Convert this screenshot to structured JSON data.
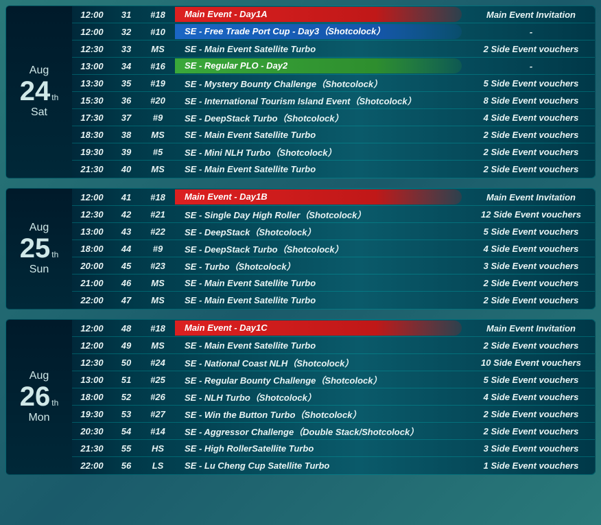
{
  "colors": {
    "highlight_red": {
      "bg": "linear-gradient(90deg, #dc2020 0%, #c01818 70%, rgba(192,24,24,0.2) 100%)",
      "text": "#ffffff"
    },
    "highlight_blue": {
      "bg": "linear-gradient(90deg, #1a66c4 0%, #1556aa 70%, rgba(21,86,170,0.2) 100%)",
      "text": "#ffffff"
    },
    "highlight_green": {
      "bg": "linear-gradient(90deg, #3aa83a 0%, #2e8e2e 70%, rgba(46,142,46,0.2) 100%)",
      "text": "#ffffff"
    }
  },
  "days": [
    {
      "month": "Aug",
      "day": "24",
      "suffix": "th",
      "weekday": "Sat",
      "rows": [
        {
          "time": "12:00",
          "seq": "31",
          "tag": "#18",
          "event": "Main Event - Day1A",
          "voucher": "Main Event Invitation",
          "highlight": "red"
        },
        {
          "time": "12:00",
          "seq": "32",
          "tag": "#10",
          "event": "SE - Free Trade Port Cup - Day3（Shotcolock）",
          "voucher": "-",
          "highlight": "blue"
        },
        {
          "time": "12:30",
          "seq": "33",
          "tag": "MS",
          "event": "SE - Main Event Satellite Turbo",
          "voucher": "2 Side Event vouchers"
        },
        {
          "time": "13:00",
          "seq": "34",
          "tag": "#16",
          "event": "SE -  Regular PLO - Day2",
          "voucher": "-",
          "highlight": "green"
        },
        {
          "time": "13:30",
          "seq": "35",
          "tag": "#19",
          "event": "SE - Mystery Bounty Challenge（Shotcolock）",
          "voucher": "5 Side Event vouchers"
        },
        {
          "time": "15:30",
          "seq": "36",
          "tag": "#20",
          "event": "SE - International Tourism Island Event（Shotcolock）",
          "voucher": "8 Side Event vouchers"
        },
        {
          "time": "17:30",
          "seq": "37",
          "tag": "#9",
          "event": "SE - DeepStack Turbo（Shotcolock）",
          "voucher": "4 Side Event vouchers"
        },
        {
          "time": "18:30",
          "seq": "38",
          "tag": "MS",
          "event": "SE - Main Event Satellite Turbo",
          "voucher": "2 Side Event vouchers"
        },
        {
          "time": "19:30",
          "seq": "39",
          "tag": "#5",
          "event": "SE - Mini NLH Turbo（Shotcolock）",
          "voucher": "2 Side Event vouchers"
        },
        {
          "time": "21:30",
          "seq": "40",
          "tag": "MS",
          "event": "SE - Main Event Satellite Turbo",
          "voucher": "2 Side Event vouchers"
        }
      ]
    },
    {
      "month": "Aug",
      "day": "25",
      "suffix": "th",
      "weekday": "Sun",
      "rows": [
        {
          "time": "12:00",
          "seq": "41",
          "tag": "#18",
          "event": "Main Event - Day1B",
          "voucher": "Main Event Invitation",
          "highlight": "red"
        },
        {
          "time": "12:30",
          "seq": "42",
          "tag": "#21",
          "event": "SE - Single Day High Roller（Shotcolock）",
          "voucher": "12 Side Event vouchers"
        },
        {
          "time": "13:00",
          "seq": "43",
          "tag": "#22",
          "event": "SE - DeepStack（Shotcolock）",
          "voucher": "5 Side Event vouchers"
        },
        {
          "time": "18:00",
          "seq": "44",
          "tag": "#9",
          "event": "SE - DeepStack Turbo（Shotcolock）",
          "voucher": "4 Side Event vouchers"
        },
        {
          "time": "20:00",
          "seq": "45",
          "tag": "#23",
          "event": "SE -  Turbo（Shotcolock）",
          "voucher": "3 Side Event vouchers"
        },
        {
          "time": "21:00",
          "seq": "46",
          "tag": "MS",
          "event": "SE - Main Event Satellite Turbo",
          "voucher": "2 Side Event vouchers"
        },
        {
          "time": "22:00",
          "seq": "47",
          "tag": "MS",
          "event": "SE - Main Event Satellite Turbo",
          "voucher": "2 Side Event vouchers"
        }
      ]
    },
    {
      "month": "Aug",
      "day": "26",
      "suffix": "th",
      "weekday": "Mon",
      "rows": [
        {
          "time": "12:00",
          "seq": "48",
          "tag": "#18",
          "event": "Main Event - Day1C",
          "voucher": "Main Event Invitation",
          "highlight": "red"
        },
        {
          "time": "12:00",
          "seq": "49",
          "tag": "MS",
          "event": "SE - Main Event Satellite Turbo",
          "voucher": "2 Side Event vouchers"
        },
        {
          "time": "12:30",
          "seq": "50",
          "tag": "#24",
          "event": "SE - National Coast NLH（Shotcolock）",
          "voucher": "10 Side Event vouchers"
        },
        {
          "time": "13:00",
          "seq": "51",
          "tag": "#25",
          "event": "SE - Regular Bounty Challenge（Shotcolock）",
          "voucher": "5 Side Event vouchers"
        },
        {
          "time": "18:00",
          "seq": "52",
          "tag": "#26",
          "event": "SE - NLH Turbo（Shotcolock）",
          "voucher": "4 Side Event vouchers"
        },
        {
          "time": "19:30",
          "seq": "53",
          "tag": "#27",
          "event": "SE - Win the Button Turbo（Shotcolock）",
          "voucher": "2 Side Event vouchers"
        },
        {
          "time": "20:30",
          "seq": "54",
          "tag": "#14",
          "event": "SE - Aggressor Challenge（Double Stack/Shotcolock）",
          "voucher": "2 Side Event vouchers"
        },
        {
          "time": "21:30",
          "seq": "55",
          "tag": "HS",
          "event": "SE - High RollerSatellite Turbo",
          "voucher": "3 Side Event vouchers"
        },
        {
          "time": "22:00",
          "seq": "56",
          "tag": "LS",
          "event": "SE - Lu Cheng Cup Satellite Turbo",
          "voucher": "1 Side Event vouchers"
        }
      ]
    }
  ]
}
